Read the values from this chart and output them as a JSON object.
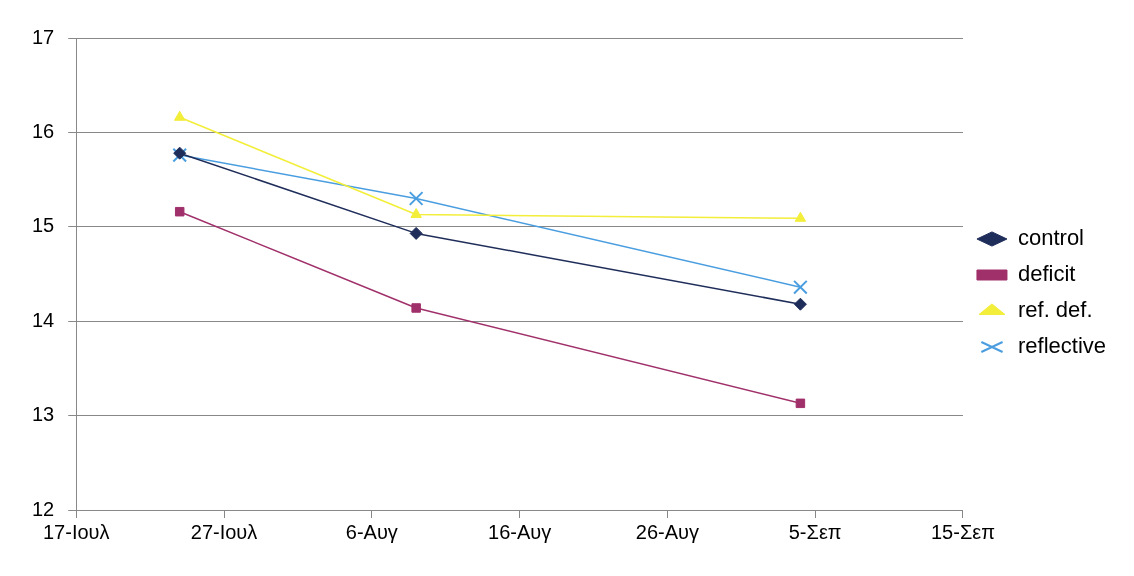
{
  "chart_data": {
    "type": "line",
    "x": [
      "--07-24",
      "--08-09",
      "--09-04"
    ],
    "xlim": [
      "--07-17",
      "--09-15"
    ],
    "xticks": [
      {
        "value": "--07-17",
        "label": "17-Ιουλ"
      },
      {
        "value": "--07-27",
        "label": "27-Ιουλ"
      },
      {
        "value": "--08-06",
        "label": "6-Αυγ"
      },
      {
        "value": "--08-16",
        "label": "16-Αυγ"
      },
      {
        "value": "--08-26",
        "label": "26-Αυγ"
      },
      {
        "value": "--09-05",
        "label": "5-Σεπ"
      },
      {
        "value": "--09-15",
        "label": "15-Σεπ"
      }
    ],
    "ylim": [
      12,
      17
    ],
    "yticks": [
      12,
      13,
      14,
      15,
      16,
      17
    ],
    "grid": "y",
    "legend": "right",
    "series": [
      {
        "name": "control",
        "color": "#1f2d5a",
        "marker": "diamond",
        "values": [
          15.78,
          14.93,
          14.18
        ]
      },
      {
        "name": "deficit",
        "color": "#a0306a",
        "marker": "square",
        "values": [
          15.16,
          14.14,
          13.13
        ]
      },
      {
        "name": "ref. def.",
        "color": "#f2ee3a",
        "marker": "triangle",
        "values": [
          16.16,
          15.13,
          15.09
        ]
      },
      {
        "name": "reflective",
        "color": "#4a9ee0",
        "marker": "cross",
        "values": [
          15.76,
          15.3,
          14.36
        ]
      }
    ]
  }
}
